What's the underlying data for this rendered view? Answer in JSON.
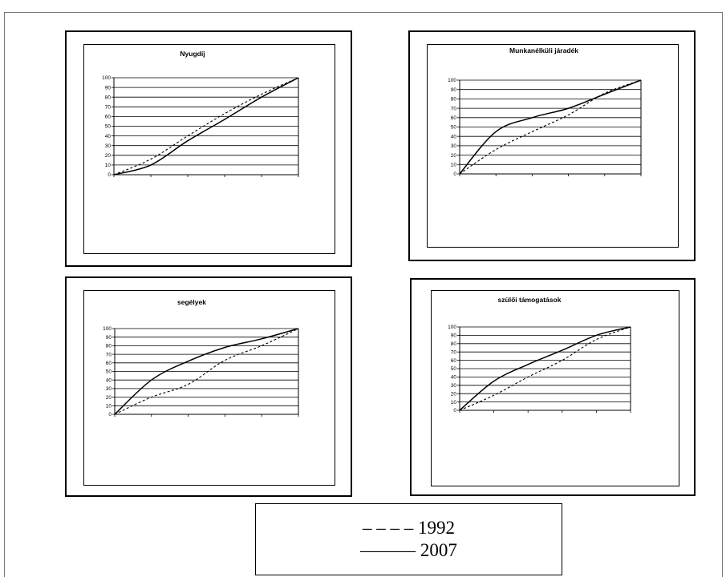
{
  "chart_data": [
    {
      "type": "line",
      "title": "Nyugdíj",
      "ylim": [
        0,
        100
      ],
      "yticks": [
        "0",
        "10",
        "20",
        "30",
        "40",
        "50",
        "60",
        "70",
        "80",
        "90",
        "100"
      ],
      "x": [
        0,
        1,
        2,
        3,
        4,
        5
      ],
      "grid": true,
      "series": [
        {
          "name": "1992",
          "style": "dashed",
          "values": [
            0,
            16,
            40,
            63,
            83,
            100
          ]
        },
        {
          "name": "2007",
          "style": "solid",
          "values": [
            0,
            10,
            35,
            57,
            80,
            100
          ]
        }
      ]
    },
    {
      "type": "line",
      "title": "Munkanélküli járadék",
      "ylim": [
        0,
        100
      ],
      "yticks": [
        "0",
        "10",
        "20",
        "30",
        "40",
        "50",
        "60",
        "70",
        "80",
        "90",
        "100"
      ],
      "x": [
        0,
        1,
        2,
        3,
        4,
        5
      ],
      "grid": true,
      "series": [
        {
          "name": "1992",
          "style": "dashed",
          "values": [
            0,
            26,
            45,
            63,
            86,
            100
          ]
        },
        {
          "name": "2007",
          "style": "solid",
          "values": [
            0,
            45,
            60,
            70,
            85,
            100
          ]
        }
      ]
    },
    {
      "type": "line",
      "title": "segélyek",
      "ylim": [
        0,
        100
      ],
      "yticks": [
        "0",
        "10",
        "20",
        "30",
        "40",
        "50",
        "60",
        "70",
        "80",
        "90",
        "100"
      ],
      "x": [
        0,
        1,
        2,
        3,
        4,
        5
      ],
      "grid": true,
      "series": [
        {
          "name": "1992",
          "style": "dashed",
          "values": [
            0,
            20,
            35,
            63,
            80,
            100
          ]
        },
        {
          "name": "2007",
          "style": "solid",
          "values": [
            0,
            40,
            62,
            78,
            88,
            100
          ]
        }
      ]
    },
    {
      "type": "line",
      "title": "szülői támogatások",
      "ylim": [
        0,
        100
      ],
      "yticks": [
        "0",
        "10",
        "20",
        "30",
        "40",
        "50",
        "60",
        "70",
        "80",
        "90",
        "100"
      ],
      "x": [
        0,
        1,
        2,
        3,
        4,
        5
      ],
      "grid": true,
      "series": [
        {
          "name": "1992",
          "style": "dashed",
          "values": [
            0,
            18,
            40,
            60,
            85,
            100
          ]
        },
        {
          "name": "2007",
          "style": "solid",
          "values": [
            0,
            35,
            55,
            72,
            90,
            100
          ]
        }
      ]
    }
  ],
  "legend": {
    "line1": "– – – – 1992",
    "line2": "——— 2007"
  },
  "colors": {
    "ink": "#000000",
    "background": "#ffffff"
  }
}
